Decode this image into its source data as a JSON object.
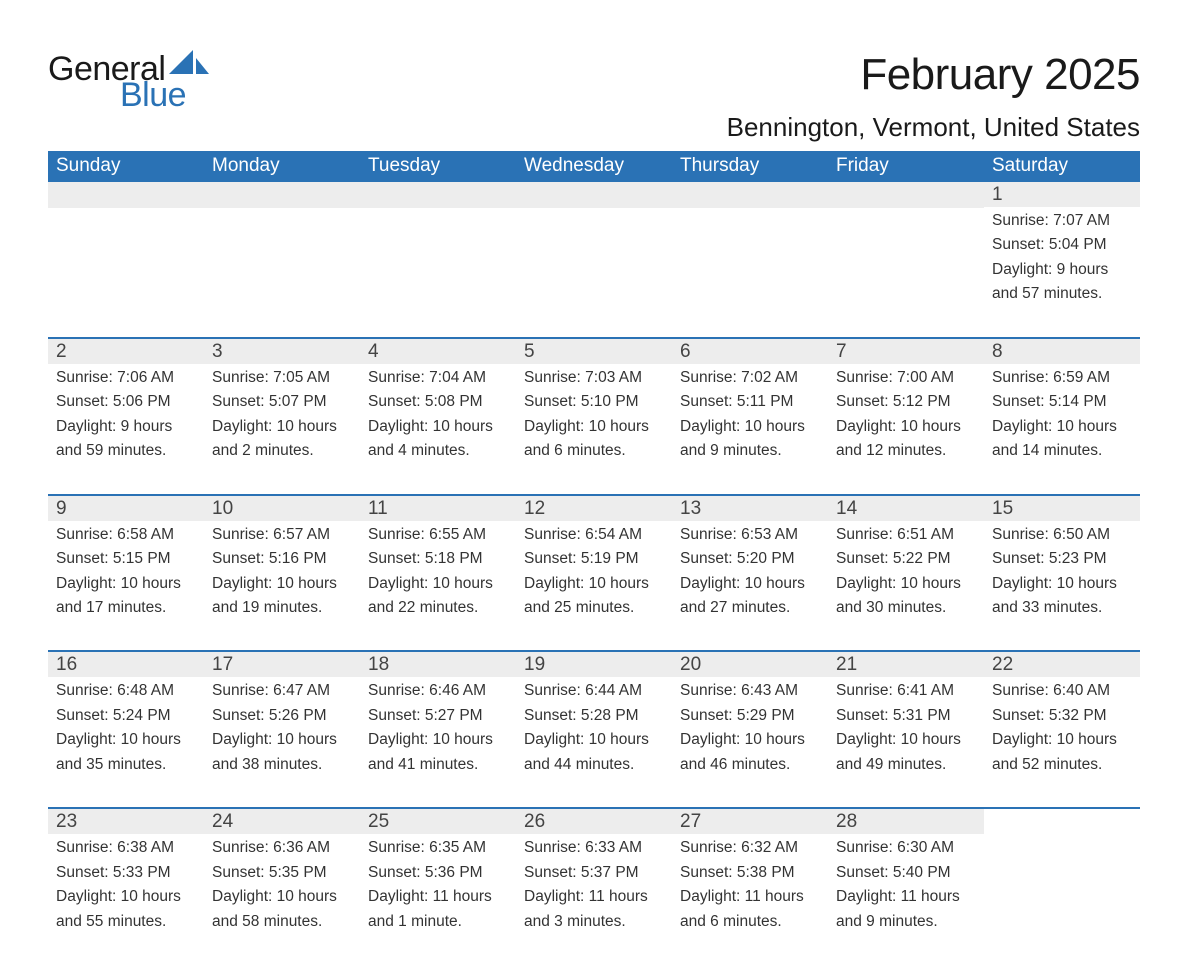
{
  "brand": {
    "word1": "General",
    "word2": "Blue",
    "sail_color": "#2a72b5"
  },
  "title": "February 2025",
  "location": "Bennington, Vermont, United States",
  "colors": {
    "header_bg": "#2a72b5",
    "header_text": "#ffffff",
    "daynum_bg": "#ededed",
    "week_divider": "#2a72b5",
    "body_text": "#333333",
    "page_bg": "#ffffff"
  },
  "day_names": [
    "Sunday",
    "Monday",
    "Tuesday",
    "Wednesday",
    "Thursday",
    "Friday",
    "Saturday"
  ],
  "weeks": [
    [
      {
        "blank": true
      },
      {
        "blank": true
      },
      {
        "blank": true
      },
      {
        "blank": true
      },
      {
        "blank": true
      },
      {
        "blank": true
      },
      {
        "n": "1",
        "sunrise": "Sunrise: 7:07 AM",
        "sunset": "Sunset: 5:04 PM",
        "day1": "Daylight: 9 hours",
        "day2": "and 57 minutes."
      }
    ],
    [
      {
        "n": "2",
        "sunrise": "Sunrise: 7:06 AM",
        "sunset": "Sunset: 5:06 PM",
        "day1": "Daylight: 9 hours",
        "day2": "and 59 minutes."
      },
      {
        "n": "3",
        "sunrise": "Sunrise: 7:05 AM",
        "sunset": "Sunset: 5:07 PM",
        "day1": "Daylight: 10 hours",
        "day2": "and 2 minutes."
      },
      {
        "n": "4",
        "sunrise": "Sunrise: 7:04 AM",
        "sunset": "Sunset: 5:08 PM",
        "day1": "Daylight: 10 hours",
        "day2": "and 4 minutes."
      },
      {
        "n": "5",
        "sunrise": "Sunrise: 7:03 AM",
        "sunset": "Sunset: 5:10 PM",
        "day1": "Daylight: 10 hours",
        "day2": "and 6 minutes."
      },
      {
        "n": "6",
        "sunrise": "Sunrise: 7:02 AM",
        "sunset": "Sunset: 5:11 PM",
        "day1": "Daylight: 10 hours",
        "day2": "and 9 minutes."
      },
      {
        "n": "7",
        "sunrise": "Sunrise: 7:00 AM",
        "sunset": "Sunset: 5:12 PM",
        "day1": "Daylight: 10 hours",
        "day2": "and 12 minutes."
      },
      {
        "n": "8",
        "sunrise": "Sunrise: 6:59 AM",
        "sunset": "Sunset: 5:14 PM",
        "day1": "Daylight: 10 hours",
        "day2": "and 14 minutes."
      }
    ],
    [
      {
        "n": "9",
        "sunrise": "Sunrise: 6:58 AM",
        "sunset": "Sunset: 5:15 PM",
        "day1": "Daylight: 10 hours",
        "day2": "and 17 minutes."
      },
      {
        "n": "10",
        "sunrise": "Sunrise: 6:57 AM",
        "sunset": "Sunset: 5:16 PM",
        "day1": "Daylight: 10 hours",
        "day2": "and 19 minutes."
      },
      {
        "n": "11",
        "sunrise": "Sunrise: 6:55 AM",
        "sunset": "Sunset: 5:18 PM",
        "day1": "Daylight: 10 hours",
        "day2": "and 22 minutes."
      },
      {
        "n": "12",
        "sunrise": "Sunrise: 6:54 AM",
        "sunset": "Sunset: 5:19 PM",
        "day1": "Daylight: 10 hours",
        "day2": "and 25 minutes."
      },
      {
        "n": "13",
        "sunrise": "Sunrise: 6:53 AM",
        "sunset": "Sunset: 5:20 PM",
        "day1": "Daylight: 10 hours",
        "day2": "and 27 minutes."
      },
      {
        "n": "14",
        "sunrise": "Sunrise: 6:51 AM",
        "sunset": "Sunset: 5:22 PM",
        "day1": "Daylight: 10 hours",
        "day2": "and 30 minutes."
      },
      {
        "n": "15",
        "sunrise": "Sunrise: 6:50 AM",
        "sunset": "Sunset: 5:23 PM",
        "day1": "Daylight: 10 hours",
        "day2": "and 33 minutes."
      }
    ],
    [
      {
        "n": "16",
        "sunrise": "Sunrise: 6:48 AM",
        "sunset": "Sunset: 5:24 PM",
        "day1": "Daylight: 10 hours",
        "day2": "and 35 minutes."
      },
      {
        "n": "17",
        "sunrise": "Sunrise: 6:47 AM",
        "sunset": "Sunset: 5:26 PM",
        "day1": "Daylight: 10 hours",
        "day2": "and 38 minutes."
      },
      {
        "n": "18",
        "sunrise": "Sunrise: 6:46 AM",
        "sunset": "Sunset: 5:27 PM",
        "day1": "Daylight: 10 hours",
        "day2": "and 41 minutes."
      },
      {
        "n": "19",
        "sunrise": "Sunrise: 6:44 AM",
        "sunset": "Sunset: 5:28 PM",
        "day1": "Daylight: 10 hours",
        "day2": "and 44 minutes."
      },
      {
        "n": "20",
        "sunrise": "Sunrise: 6:43 AM",
        "sunset": "Sunset: 5:29 PM",
        "day1": "Daylight: 10 hours",
        "day2": "and 46 minutes."
      },
      {
        "n": "21",
        "sunrise": "Sunrise: 6:41 AM",
        "sunset": "Sunset: 5:31 PM",
        "day1": "Daylight: 10 hours",
        "day2": "and 49 minutes."
      },
      {
        "n": "22",
        "sunrise": "Sunrise: 6:40 AM",
        "sunset": "Sunset: 5:32 PM",
        "day1": "Daylight: 10 hours",
        "day2": "and 52 minutes."
      }
    ],
    [
      {
        "n": "23",
        "sunrise": "Sunrise: 6:38 AM",
        "sunset": "Sunset: 5:33 PM",
        "day1": "Daylight: 10 hours",
        "day2": "and 55 minutes."
      },
      {
        "n": "24",
        "sunrise": "Sunrise: 6:36 AM",
        "sunset": "Sunset: 5:35 PM",
        "day1": "Daylight: 10 hours",
        "day2": "and 58 minutes."
      },
      {
        "n": "25",
        "sunrise": "Sunrise: 6:35 AM",
        "sunset": "Sunset: 5:36 PM",
        "day1": "Daylight: 11 hours",
        "day2": "and 1 minute."
      },
      {
        "n": "26",
        "sunrise": "Sunrise: 6:33 AM",
        "sunset": "Sunset: 5:37 PM",
        "day1": "Daylight: 11 hours",
        "day2": "and 3 minutes."
      },
      {
        "n": "27",
        "sunrise": "Sunrise: 6:32 AM",
        "sunset": "Sunset: 5:38 PM",
        "day1": "Daylight: 11 hours",
        "day2": "and 6 minutes."
      },
      {
        "n": "28",
        "sunrise": "Sunrise: 6:30 AM",
        "sunset": "Sunset: 5:40 PM",
        "day1": "Daylight: 11 hours",
        "day2": "and 9 minutes."
      },
      {
        "blank": true,
        "noBand": true
      }
    ]
  ]
}
